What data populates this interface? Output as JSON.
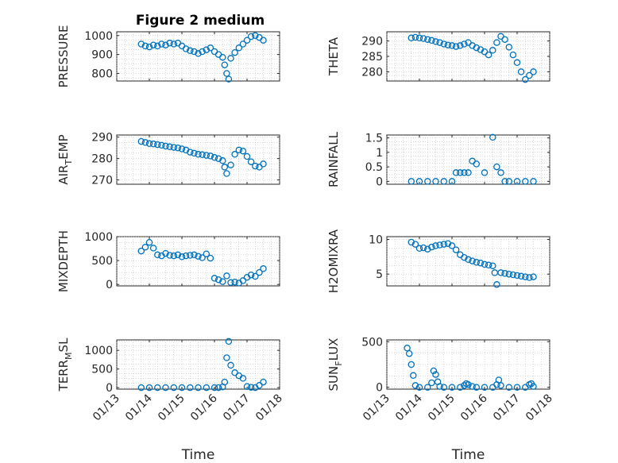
{
  "figure_title": "Figure 2 medium",
  "marker_color": "#0072BD",
  "x_tick_labels": [
    "01/13",
    "01/14",
    "01/15",
    "01/16",
    "01/17",
    "01/18"
  ],
  "x_label": "Time",
  "chart_data": [
    {
      "type": "scatter",
      "ylabel": "PRESSURE",
      "ylim": [
        760,
        1020
      ],
      "yticks": [
        800,
        900,
        1000
      ],
      "grid": true,
      "x": [
        "01/13 18:00",
        "01/13 21:00",
        "01/14 00:00",
        "01/14 03:00",
        "01/14 06:00",
        "01/14 09:00",
        "01/14 12:00",
        "01/14 15:00",
        "01/14 18:00",
        "01/14 21:00",
        "01/15 00:00",
        "01/15 03:00",
        "01/15 06:00",
        "01/15 09:00",
        "01/15 12:00",
        "01/15 15:00",
        "01/15 18:00",
        "01/15 21:00",
        "01/16 00:00",
        "01/16 03:00",
        "01/16 06:00",
        "01/16 07:30",
        "01/16 09:00",
        "01/16 10:30",
        "01/16 12:00",
        "01/16 15:00",
        "01/16 18:00",
        "01/16 21:00",
        "01/17 00:00",
        "01/17 03:00",
        "01/17 06:00",
        "01/17 09:00",
        "01/17 12:00"
      ],
      "y": [
        955,
        945,
        940,
        950,
        945,
        955,
        950,
        960,
        955,
        960,
        945,
        930,
        920,
        915,
        905,
        915,
        925,
        935,
        915,
        900,
        885,
        845,
        800,
        770,
        880,
        910,
        935,
        955,
        975,
        995,
        1000,
        990,
        975
      ]
    },
    {
      "type": "scatter",
      "ylabel": "THETA",
      "ylim": [
        277,
        293
      ],
      "yticks": [
        280,
        285,
        290
      ],
      "grid": true,
      "x": [
        "01/13 18:00",
        "01/13 21:00",
        "01/14 00:00",
        "01/14 03:00",
        "01/14 06:00",
        "01/14 09:00",
        "01/14 12:00",
        "01/14 15:00",
        "01/14 18:00",
        "01/14 21:00",
        "01/15 00:00",
        "01/15 03:00",
        "01/15 06:00",
        "01/15 09:00",
        "01/15 12:00",
        "01/15 15:00",
        "01/15 18:00",
        "01/15 21:00",
        "01/16 00:00",
        "01/16 03:00",
        "01/16 06:00",
        "01/16 09:00",
        "01/16 12:00",
        "01/16 15:00",
        "01/16 18:00",
        "01/16 21:00",
        "01/17 00:00",
        "01/17 03:00",
        "01/17 06:00",
        "01/17 09:00",
        "01/17 12:00"
      ],
      "y": [
        291,
        291.2,
        291,
        290.8,
        290.5,
        290.2,
        289.8,
        289.5,
        289,
        288.7,
        288.5,
        288.2,
        288.5,
        289,
        289.5,
        288.5,
        287.8,
        287.2,
        286.5,
        285.5,
        287,
        289.5,
        291.5,
        290.5,
        288,
        285.5,
        283,
        280,
        277.5,
        278.8,
        280
      ]
    },
    {
      "type": "scatter",
      "ylabel": "AIR_TEMP",
      "ylim": [
        268,
        291
      ],
      "yticks": [
        270,
        280,
        290
      ],
      "grid": true,
      "x": [
        "01/13 18:00",
        "01/13 21:00",
        "01/14 00:00",
        "01/14 03:00",
        "01/14 06:00",
        "01/14 09:00",
        "01/14 12:00",
        "01/14 15:00",
        "01/14 18:00",
        "01/14 21:00",
        "01/15 00:00",
        "01/15 03:00",
        "01/15 06:00",
        "01/15 09:00",
        "01/15 12:00",
        "01/15 15:00",
        "01/15 18:00",
        "01/15 21:00",
        "01/16 00:00",
        "01/16 03:00",
        "01/16 06:00",
        "01/16 07:30",
        "01/16 09:00",
        "01/16 12:00",
        "01/16 15:00",
        "01/16 18:00",
        "01/16 21:00",
        "01/17 00:00",
        "01/17 03:00",
        "01/17 06:00",
        "01/17 09:00",
        "01/17 12:00"
      ],
      "y": [
        288,
        287.5,
        287,
        286.8,
        286.5,
        286.2,
        285.8,
        285.5,
        285.2,
        285,
        284.5,
        284,
        283,
        282.5,
        282,
        281.8,
        281.5,
        281.2,
        280.5,
        280,
        279,
        276,
        273,
        277,
        282,
        284,
        283.5,
        281,
        278.5,
        276.5,
        276,
        277.5
      ]
    },
    {
      "type": "scatter",
      "ylabel": "RAINFALL",
      "ylim": [
        -0.1,
        1.6
      ],
      "yticks": [
        0,
        0.5,
        1,
        1.5
      ],
      "grid": true,
      "x": [
        "01/13 18:00",
        "01/14 00:00",
        "01/14 06:00",
        "01/14 12:00",
        "01/14 18:00",
        "01/15 00:00",
        "01/15 03:00",
        "01/15 06:00",
        "01/15 09:00",
        "01/15 12:00",
        "01/15 15:00",
        "01/15 18:00",
        "01/16 00:00",
        "01/16 06:00",
        "01/16 09:00",
        "01/16 12:00",
        "01/16 15:00",
        "01/16 18:00",
        "01/17 00:00",
        "01/17 06:00",
        "01/17 12:00"
      ],
      "y": [
        0,
        0,
        0,
        0,
        0,
        0,
        0.3,
        0.3,
        0.3,
        0.3,
        0.7,
        0.6,
        0.3,
        1.52,
        0.5,
        0.3,
        0,
        0,
        0,
        0,
        0
      ]
    },
    {
      "type": "scatter",
      "ylabel": "MIXDEPTH",
      "ylim": [
        -30,
        1000
      ],
      "yticks": [
        0,
        500,
        1000
      ],
      "grid": true,
      "x": [
        "01/13 18:00",
        "01/13 21:00",
        "01/14 00:00",
        "01/14 03:00",
        "01/14 06:00",
        "01/14 09:00",
        "01/14 12:00",
        "01/14 15:00",
        "01/14 18:00",
        "01/14 21:00",
        "01/15 00:00",
        "01/15 03:00",
        "01/15 06:00",
        "01/15 09:00",
        "01/15 12:00",
        "01/15 15:00",
        "01/15 18:00",
        "01/15 21:00",
        "01/16 00:00",
        "01/16 03:00",
        "01/16 06:00",
        "01/16 09:00",
        "01/16 12:00",
        "01/16 15:00",
        "01/16 18:00",
        "01/16 21:00",
        "01/17 00:00",
        "01/17 03:00",
        "01/17 06:00",
        "01/17 09:00",
        "01/17 12:00"
      ],
      "y": [
        700,
        780,
        880,
        760,
        620,
        600,
        650,
        610,
        600,
        620,
        580,
        600,
        610,
        620,
        590,
        560,
        640,
        550,
        130,
        100,
        60,
        180,
        40,
        50,
        30,
        80,
        150,
        200,
        170,
        250,
        330
      ]
    },
    {
      "type": "scatter",
      "ylabel": "H2OMIXRA",
      "ylim": [
        3.3,
        10.4
      ],
      "yticks": [
        5,
        10
      ],
      "grid": true,
      "x": [
        "01/13 18:00",
        "01/13 21:00",
        "01/14 00:00",
        "01/14 03:00",
        "01/14 06:00",
        "01/14 09:00",
        "01/14 12:00",
        "01/14 15:00",
        "01/14 18:00",
        "01/14 21:00",
        "01/15 00:00",
        "01/15 03:00",
        "01/15 06:00",
        "01/15 09:00",
        "01/15 12:00",
        "01/15 15:00",
        "01/15 18:00",
        "01/15 21:00",
        "01/16 00:00",
        "01/16 03:00",
        "01/16 06:00",
        "01/16 07:30",
        "01/16 09:00",
        "01/16 12:00",
        "01/16 15:00",
        "01/16 18:00",
        "01/16 21:00",
        "01/17 00:00",
        "01/17 03:00",
        "01/17 06:00",
        "01/17 09:00",
        "01/17 12:00"
      ],
      "y": [
        9.6,
        9.3,
        8.7,
        8.8,
        8.6,
        8.9,
        9.1,
        9.2,
        9.3,
        9.4,
        9.1,
        8.5,
        7.8,
        7.4,
        7.1,
        6.9,
        6.7,
        6.6,
        6.4,
        6.3,
        6.2,
        5.2,
        3.5,
        5.2,
        5.1,
        5.0,
        4.9,
        4.8,
        4.7,
        4.6,
        4.5,
        4.6
      ]
    },
    {
      "type": "scatter",
      "ylabel": "TERR_MSL",
      "ylim": [
        -40,
        1280
      ],
      "yticks": [
        0,
        500,
        1000
      ],
      "grid": true,
      "x": [
        "01/13 18:00",
        "01/14 00:00",
        "01/14 06:00",
        "01/14 12:00",
        "01/14 18:00",
        "01/15 00:00",
        "01/15 06:00",
        "01/15 12:00",
        "01/15 18:00",
        "01/16 00:00",
        "01/16 03:00",
        "01/16 06:00",
        "01/16 07:30",
        "01/16 09:00",
        "01/16 10:30",
        "01/16 12:00",
        "01/16 15:00",
        "01/16 18:00",
        "01/16 21:00",
        "01/17 00:00",
        "01/17 03:00",
        "01/17 06:00",
        "01/17 09:00",
        "01/17 12:00"
      ],
      "y": [
        0,
        0,
        0,
        0,
        0,
        0,
        0,
        0,
        0,
        0,
        0,
        20,
        150,
        800,
        1240,
        600,
        400,
        320,
        250,
        30,
        10,
        0,
        60,
        150
      ]
    },
    {
      "type": "scatter",
      "ylabel": "SUN_FLUX",
      "ylim": [
        -20,
        520
      ],
      "yticks": [
        0,
        500
      ],
      "grid": true,
      "x": [
        "01/13 15:00",
        "01/13 16:30",
        "01/13 18:00",
        "01/13 19:30",
        "01/13 21:00",
        "01/14 00:00",
        "01/14 06:00",
        "01/14 09:00",
        "01/14 10:30",
        "01/14 12:00",
        "01/14 13:30",
        "01/14 15:00",
        "01/14 18:00",
        "01/15 00:00",
        "01/15 06:00",
        "01/15 09:00",
        "01/15 10:30",
        "01/15 12:00",
        "01/15 15:00",
        "01/15 18:00",
        "01/16 00:00",
        "01/16 06:00",
        "01/16 09:00",
        "01/16 10:30",
        "01/16 12:00",
        "01/16 18:00",
        "01/17 00:00",
        "01/17 06:00",
        "01/17 09:00",
        "01/17 10:30",
        "01/17 12:00"
      ],
      "y": [
        430,
        370,
        250,
        130,
        20,
        0,
        0,
        50,
        180,
        140,
        60,
        10,
        0,
        0,
        0,
        20,
        40,
        30,
        10,
        0,
        0,
        0,
        30,
        80,
        20,
        0,
        0,
        0,
        30,
        40,
        10
      ]
    }
  ]
}
